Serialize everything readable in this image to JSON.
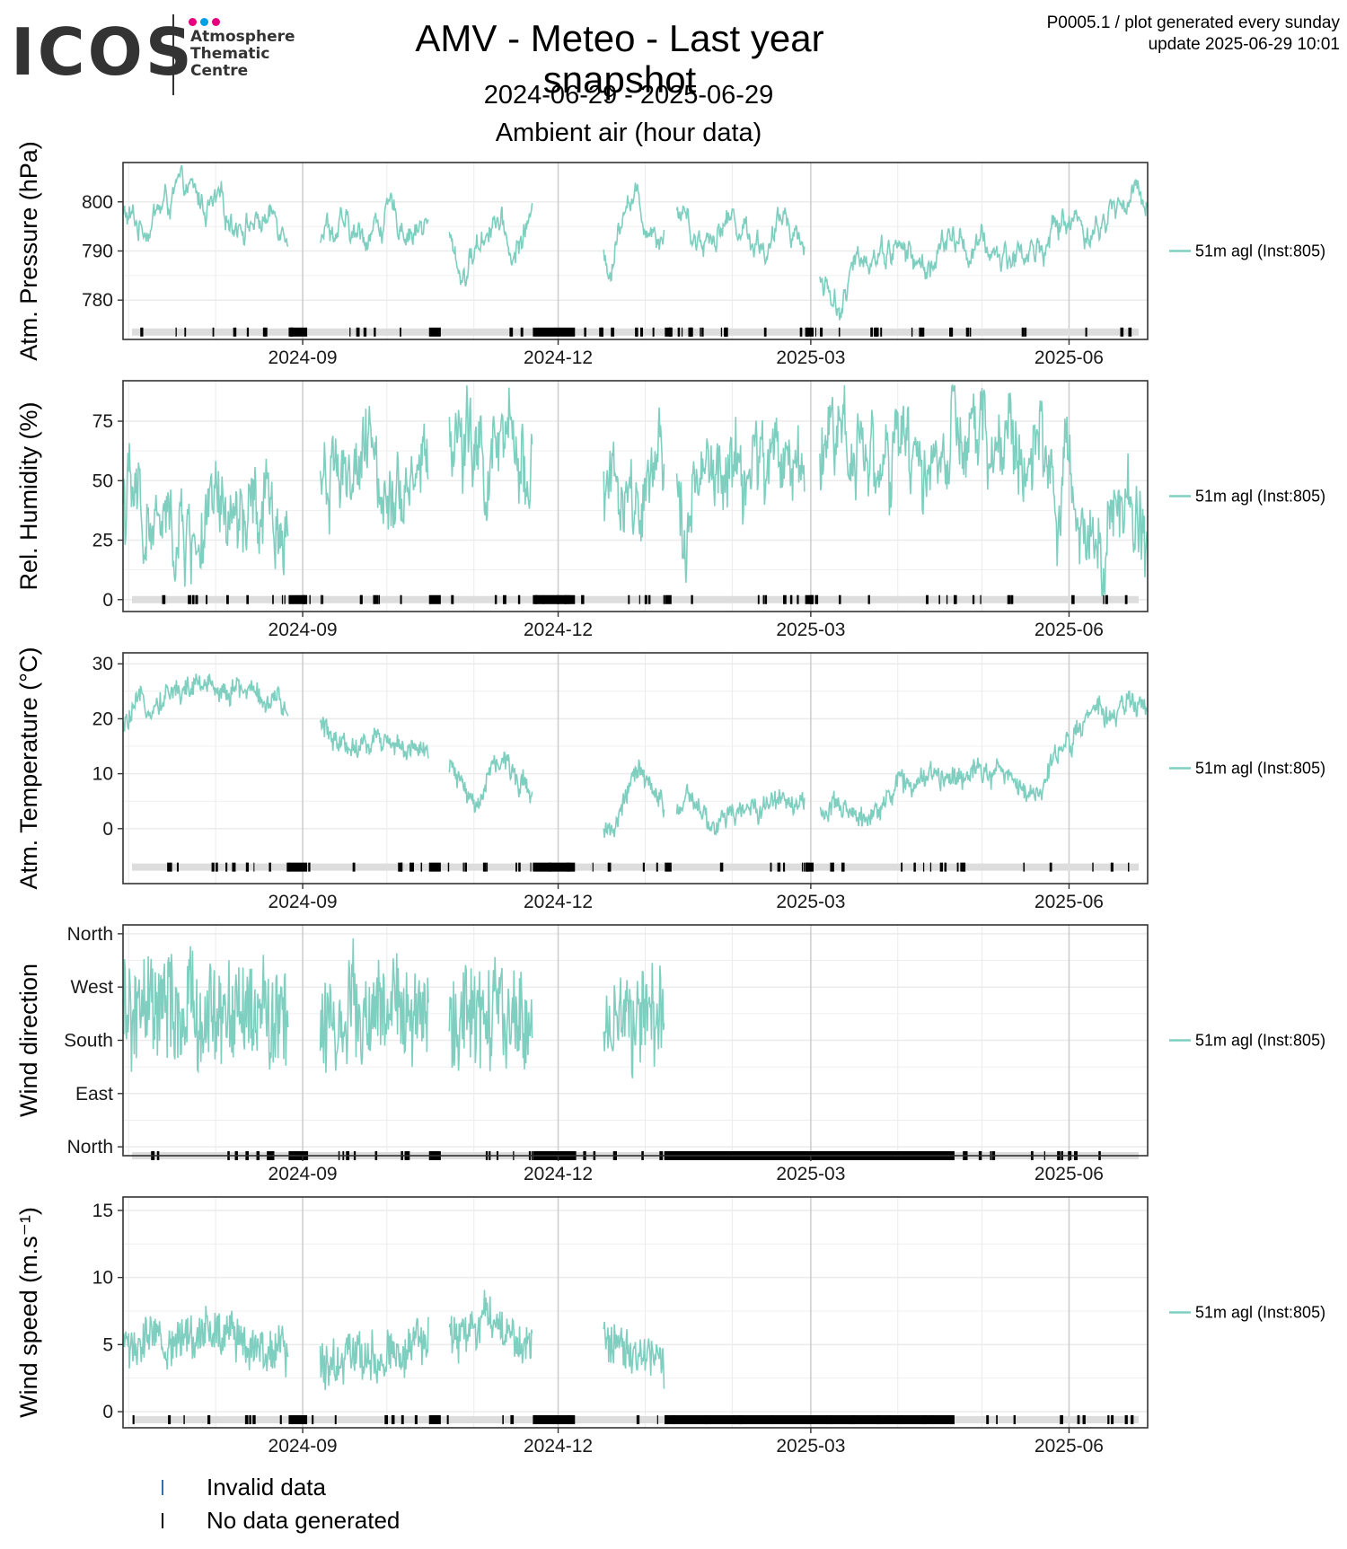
{
  "header": {
    "logo_text": "ICOS",
    "logo_subtitle": [
      "Atmosphere",
      "Thematic",
      "Centre"
    ],
    "title": "AMV - Meteo - Last year snapshot",
    "date_range": "2024-06-29 - 2025-06-29",
    "section": "Ambient air (hour data)",
    "info_line1": "P0005.1 / plot generated every sunday",
    "info_line2": "update  2025-06-29 10:01"
  },
  "colors": {
    "series": "#7fcfc0",
    "no_data": "#000000",
    "invalid": "#2b6fb4",
    "status_background": "#dddddd",
    "grid": "#ebebeb",
    "month_line": "#cccccc",
    "logo_dots": [
      "#e6007e",
      "#009fe3",
      "#e6007e"
    ]
  },
  "legend": {
    "invalid_label": "Invalid data",
    "no_data_label": "No data generated"
  },
  "chart_data": [
    {
      "type": "line",
      "ylabel": "Atm. Pressure (hPa)",
      "ylim": [
        772,
        808
      ],
      "yticks": [
        780,
        790,
        800
      ],
      "ytick_labels": [
        "780",
        "790",
        "800"
      ],
      "status_y": 773.5,
      "base": 797,
      "amp": 4,
      "noise": 1.5,
      "xlim": [
        "2024-06-29",
        "2025-06-29"
      ],
      "xticks": [
        "2024-09-01",
        "2024-12-01",
        "2025-03-01",
        "2025-06-01"
      ],
      "xtick_labels": [
        "2024-09",
        "2024-12",
        "2025-03",
        "2025-06"
      ],
      "series": [
        {
          "name": "51m agl (Inst:805)",
          "values": [
            [
              "2024-06-29",
              797
            ],
            [
              "2024-07-05",
              795
            ],
            [
              "2024-07-15",
              800
            ],
            [
              "2024-07-20",
              802
            ],
            [
              "2024-08-01",
              798
            ],
            [
              "2024-08-15",
              796
            ],
            [
              "2024-08-26",
              797
            ],
            [
              "2024-09-10",
              796
            ],
            [
              "2024-09-20",
              792
            ],
            [
              "2024-10-01",
              797
            ],
            [
              "2024-10-10",
              795
            ],
            [
              "2024-10-20",
              795
            ],
            [
              "2024-10-28",
              785
            ],
            [
              "2024-11-08",
              798
            ],
            [
              "2024-11-15",
              788
            ],
            [
              "2024-11-20",
              796
            ],
            [
              "2024-12-20",
              787
            ],
            [
              "2024-12-25",
              803
            ],
            [
              "2025-01-01",
              797
            ],
            [
              "2025-01-06",
              795
            ],
            [
              "2025-01-15",
              799
            ],
            [
              "2025-01-20",
              792
            ],
            [
              "2025-02-01",
              797
            ],
            [
              "2025-02-15",
              790
            ],
            [
              "2025-02-20",
              799
            ],
            [
              "2025-02-25",
              793
            ],
            [
              "2025-03-05",
              784
            ],
            [
              "2025-03-12",
              779
            ],
            [
              "2025-03-20",
              790
            ],
            [
              "2025-04-01",
              791
            ],
            [
              "2025-04-10",
              786
            ],
            [
              "2025-04-20",
              792
            ],
            [
              "2025-05-01",
              790
            ],
            [
              "2025-05-10",
              789
            ],
            [
              "2025-05-20",
              790
            ],
            [
              "2025-06-01",
              797
            ],
            [
              "2025-06-10",
              794
            ],
            [
              "2025-06-20",
              800
            ],
            [
              "2025-06-29",
              802
            ]
          ]
        }
      ],
      "gaps": [
        [
          "2024-08-27",
          "2024-09-07"
        ],
        [
          "2024-10-16",
          "2024-10-23"
        ],
        [
          "2024-11-22",
          "2024-12-17"
        ],
        [
          "2025-01-08",
          "2025-01-12"
        ],
        [
          "2025-02-27",
          "2025-03-04"
        ]
      ]
    },
    {
      "type": "line",
      "ylabel": "Rel. Humidity (%)",
      "ylim": [
        -5,
        92
      ],
      "yticks": [
        0,
        25,
        50,
        75
      ],
      "ytick_labels": [
        "0",
        "25",
        "50",
        "75"
      ],
      "status_y": 0,
      "base": 45,
      "amp": 20,
      "noise": 20,
      "xlim": [
        "2024-06-29",
        "2025-06-29"
      ],
      "xticks": [
        "2024-09-01",
        "2024-12-01",
        "2025-03-01",
        "2025-06-01"
      ],
      "xtick_labels": [
        "2024-09",
        "2024-12",
        "2025-03",
        "2025-06"
      ],
      "series": [
        {
          "name": "51m agl (Inst:805)",
          "values": [
            [
              "2024-06-29",
              45
            ],
            [
              "2024-07-05",
              35
            ],
            [
              "2024-07-15",
              25
            ],
            [
              "2024-08-01",
              28
            ],
            [
              "2024-08-15",
              30
            ],
            [
              "2024-08-26",
              33
            ],
            [
              "2024-09-10",
              60
            ],
            [
              "2024-09-25",
              55
            ],
            [
              "2024-10-10",
              55
            ],
            [
              "2024-10-25",
              70
            ],
            [
              "2024-11-05",
              55
            ],
            [
              "2024-11-20",
              60
            ],
            [
              "2024-12-20",
              50
            ],
            [
              "2024-12-28",
              30
            ],
            [
              "2025-01-08",
              45
            ],
            [
              "2025-01-20",
              45
            ],
            [
              "2025-02-10",
              55
            ],
            [
              "2025-02-25",
              60
            ],
            [
              "2025-03-10",
              75
            ],
            [
              "2025-04-01",
              55
            ],
            [
              "2025-04-20",
              60
            ],
            [
              "2025-05-10",
              65
            ],
            [
              "2025-05-20",
              60
            ],
            [
              "2025-06-01",
              40
            ],
            [
              "2025-06-15",
              35
            ],
            [
              "2025-06-29",
              30
            ]
          ]
        }
      ],
      "gaps": [
        [
          "2024-08-27",
          "2024-09-07"
        ],
        [
          "2024-10-16",
          "2024-10-23"
        ],
        [
          "2024-11-22",
          "2024-12-17"
        ],
        [
          "2025-01-08",
          "2025-01-12"
        ],
        [
          "2025-02-27",
          "2025-03-04"
        ]
      ]
    },
    {
      "type": "line",
      "ylabel": "Atm. Temperature (°C)",
      "ylim": [
        -10,
        32
      ],
      "yticks": [
        0,
        10,
        20,
        30
      ],
      "ytick_labels": [
        "0",
        "10",
        "20",
        "30"
      ],
      "status_y": -7,
      "base": 10,
      "amp": 2,
      "noise": 3,
      "xlim": [
        "2024-06-29",
        "2025-06-29"
      ],
      "xticks": [
        "2024-09-01",
        "2024-12-01",
        "2025-03-01",
        "2025-06-01"
      ],
      "xtick_labels": [
        "2024-09",
        "2024-12",
        "2025-03",
        "2025-06"
      ],
      "series": [
        {
          "name": "51m agl (Inst:805)",
          "values": [
            [
              "2024-06-29",
              18
            ],
            [
              "2024-07-05",
              22
            ],
            [
              "2024-07-15",
              25
            ],
            [
              "2024-08-01",
              26
            ],
            [
              "2024-08-15",
              25
            ],
            [
              "2024-08-26",
              21
            ],
            [
              "2024-09-10",
              18
            ],
            [
              "2024-09-20",
              15
            ],
            [
              "2024-10-01",
              17
            ],
            [
              "2024-10-10",
              14
            ],
            [
              "2024-10-25",
              10
            ],
            [
              "2024-11-01",
              4
            ],
            [
              "2024-11-08",
              13
            ],
            [
              "2024-11-20",
              8
            ],
            [
              "2024-12-20",
              0
            ],
            [
              "2024-12-28",
              10
            ],
            [
              "2025-01-08",
              4
            ],
            [
              "2025-01-15",
              5
            ],
            [
              "2025-01-25",
              0
            ],
            [
              "2025-02-05",
              3
            ],
            [
              "2025-02-20",
              6
            ],
            [
              "2025-03-05",
              3
            ],
            [
              "2025-03-20",
              2
            ],
            [
              "2025-04-01",
              8
            ],
            [
              "2025-04-15",
              9
            ],
            [
              "2025-05-01",
              12
            ],
            [
              "2025-05-10",
              9
            ],
            [
              "2025-05-20",
              6
            ],
            [
              "2025-06-01",
              17
            ],
            [
              "2025-06-10",
              20
            ],
            [
              "2025-06-20",
              22
            ],
            [
              "2025-06-29",
              22
            ]
          ]
        }
      ],
      "gaps": [
        [
          "2024-08-27",
          "2024-09-07"
        ],
        [
          "2024-10-16",
          "2024-10-23"
        ],
        [
          "2024-11-22",
          "2024-12-17"
        ],
        [
          "2025-01-08",
          "2025-01-12"
        ],
        [
          "2025-02-27",
          "2025-03-04"
        ]
      ]
    },
    {
      "type": "line",
      "ylabel": "Wind direction",
      "ylim": [
        -15,
        375
      ],
      "yticks": [
        0,
        90,
        180,
        270,
        360
      ],
      "ytick_labels": [
        "North",
        "East",
        "South",
        "West",
        "North"
      ],
      "status_y": -15,
      "base": 200,
      "amp": 40,
      "noise": 160,
      "xlim": [
        "2024-06-29",
        "2025-06-29"
      ],
      "xticks": [
        "2024-09-01",
        "2024-12-01",
        "2025-03-01",
        "2025-06-01"
      ],
      "xtick_labels": [
        "2024-09",
        "2024-12",
        "2025-03",
        "2025-06"
      ],
      "series": [
        {
          "name": "51m agl (Inst:805)",
          "values": [
            [
              "2024-06-29",
              220
            ],
            [
              "2024-08-26",
              220
            ],
            [
              "2024-09-07",
              220
            ],
            [
              "2024-10-15",
              220
            ],
            [
              "2024-10-24",
              210
            ],
            [
              "2024-11-20",
              210
            ],
            [
              "2024-12-17",
              220
            ],
            [
              "2025-01-08",
              200
            ]
          ]
        }
      ],
      "gaps": [
        [
          "2024-08-27",
          "2024-09-07"
        ],
        [
          "2024-10-16",
          "2024-10-23"
        ],
        [
          "2024-11-22",
          "2024-12-17"
        ],
        [
          "2025-01-08",
          "2025-06-29"
        ]
      ]
    },
    {
      "type": "line",
      "ylabel": "Wind speed (m.s⁻¹)",
      "ylim": [
        -1.2,
        16
      ],
      "yticks": [
        0,
        5,
        10,
        15
      ],
      "ytick_labels": [
        "0",
        "5",
        "10",
        "15"
      ],
      "status_y": -0.6,
      "base": 5,
      "amp": 1,
      "noise": 3,
      "xlim": [
        "2024-06-29",
        "2025-06-29"
      ],
      "xticks": [
        "2024-09-01",
        "2024-12-01",
        "2025-03-01",
        "2025-06-01"
      ],
      "xtick_labels": [
        "2024-09",
        "2024-12",
        "2025-03",
        "2025-06"
      ],
      "series": [
        {
          "name": "51m agl (Inst:805)",
          "values": [
            [
              "2024-06-29",
              5
            ],
            [
              "2024-07-15",
              5
            ],
            [
              "2024-07-25",
              6
            ],
            [
              "2024-08-26",
              5
            ],
            [
              "2024-09-07",
              4
            ],
            [
              "2024-10-15",
              5
            ],
            [
              "2024-10-24",
              5
            ],
            [
              "2024-11-05",
              7
            ],
            [
              "2024-11-20",
              5
            ],
            [
              "2024-12-17",
              5
            ],
            [
              "2025-01-08",
              4
            ]
          ]
        }
      ],
      "gaps": [
        [
          "2024-08-27",
          "2024-09-07"
        ],
        [
          "2024-10-16",
          "2024-10-23"
        ],
        [
          "2024-11-22",
          "2024-12-17"
        ],
        [
          "2025-01-08",
          "2025-06-29"
        ]
      ]
    }
  ]
}
